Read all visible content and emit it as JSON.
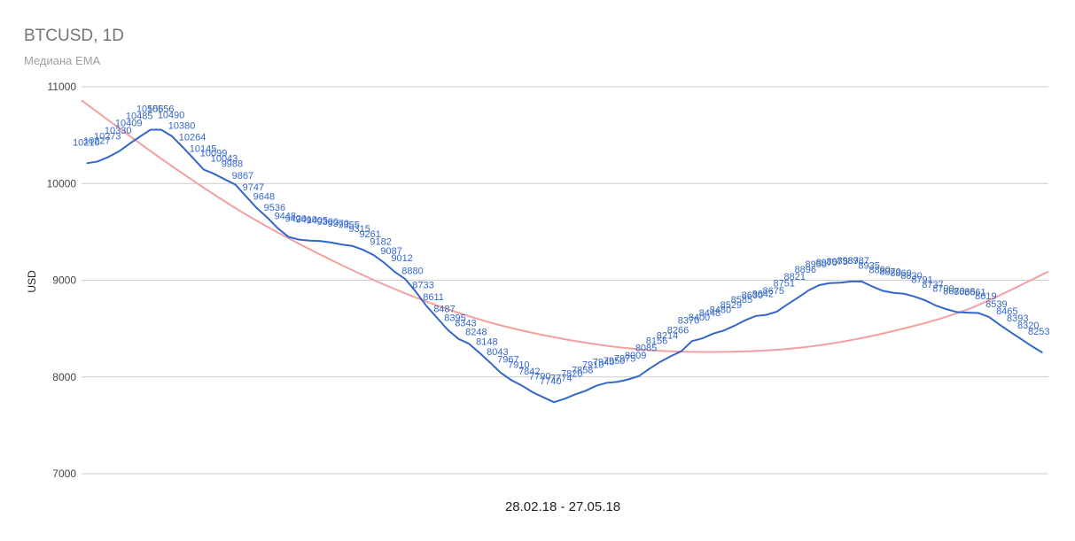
{
  "header": {
    "title": "BTCUSD, 1D",
    "subtitle": "Медиана EMA"
  },
  "chart_data": {
    "type": "line",
    "title": "BTCUSD, 1D",
    "subtitle": "Медиана EMA",
    "xlabel": "28.02.18 - 27.05.18",
    "ylabel": "USD",
    "ylim": [
      7000,
      11000
    ],
    "yticks": [
      "7000",
      "8000",
      "9000",
      "10000",
      "11000"
    ],
    "grid": true,
    "colors": {
      "median": "#3366cc",
      "trend": "#f4a0a0",
      "grid": "#cccccc"
    },
    "series": [
      {
        "values": [
          10210,
          10227,
          10273,
          10330,
          10409,
          10485,
          10556,
          10556,
          10490,
          10380,
          10264,
          10145,
          10099,
          10043,
          9988,
          9867,
          9747,
          9648,
          9536,
          9448,
          9420,
          9410,
          9405,
          9390,
          9370,
          9355,
          9315,
          9261,
          9182,
          9087,
          9012,
          8880,
          8733,
          8611,
          8487,
          8395,
          8343,
          8248,
          8148,
          8043,
          7967,
          7910,
          7842,
          7790,
          7740,
          7774,
          7820,
          7858,
          7910,
          7940,
          7950,
          7975,
          8009,
          8085,
          8156,
          8214,
          8266,
          8370,
          8400,
          8448,
          8480,
          8529,
          8585,
          8630,
          8642,
          8675,
          8751,
          8821,
          8896,
          8950,
          8970,
          8975,
          8987,
          8987,
          8935,
          8890,
          8870,
          8860,
          8830,
          8791,
          8737,
          8700,
          8670,
          8665,
          8661,
          8619,
          8539,
          8465,
          8393,
          8320,
          8253
        ],
        "labels": [
          "10210",
          "10227",
          "10273",
          "10330",
          "10409",
          "10485",
          "10556",
          "10556",
          "10490",
          "10380",
          "10264",
          "10145",
          "10099",
          "10043",
          "9988",
          "9867",
          "9747",
          "9648",
          "9536",
          "9448",
          "9420",
          "9410",
          "9405",
          "9390",
          "9370",
          "9355",
          "9315",
          "9261",
          "9182",
          "9087",
          "9012",
          "8880",
          "8733",
          "8611",
          "8487",
          "8395",
          "8343",
          "8248",
          "8148",
          "8043",
          "7967",
          "7910",
          "7842",
          "7790",
          "7740",
          "7774",
          "7820",
          "7858",
          "7910",
          "7940",
          "7950",
          "7975",
          "8009",
          "8085",
          "8156",
          "8214",
          "8266",
          "8370",
          "8400",
          "8448",
          "8480",
          "8529",
          "8585",
          "8630",
          "8642",
          "8675",
          "8751",
          "8821",
          "8896",
          "8950",
          "8970",
          "8975",
          "8987",
          "8987",
          "8935",
          "8890",
          "8870",
          "8860",
          "8830",
          "8791",
          "8737",
          "8700",
          "8670",
          "8665",
          "8661",
          "8619",
          "8539",
          "8465",
          "8393",
          "8320",
          "8253"
        ]
      },
      {
        "values": [
          10860,
          10250,
          9700,
          9250,
          8870,
          8580,
          8390,
          8280,
          8260,
          8310,
          8460,
          8700,
          9090
        ]
      }
    ]
  }
}
